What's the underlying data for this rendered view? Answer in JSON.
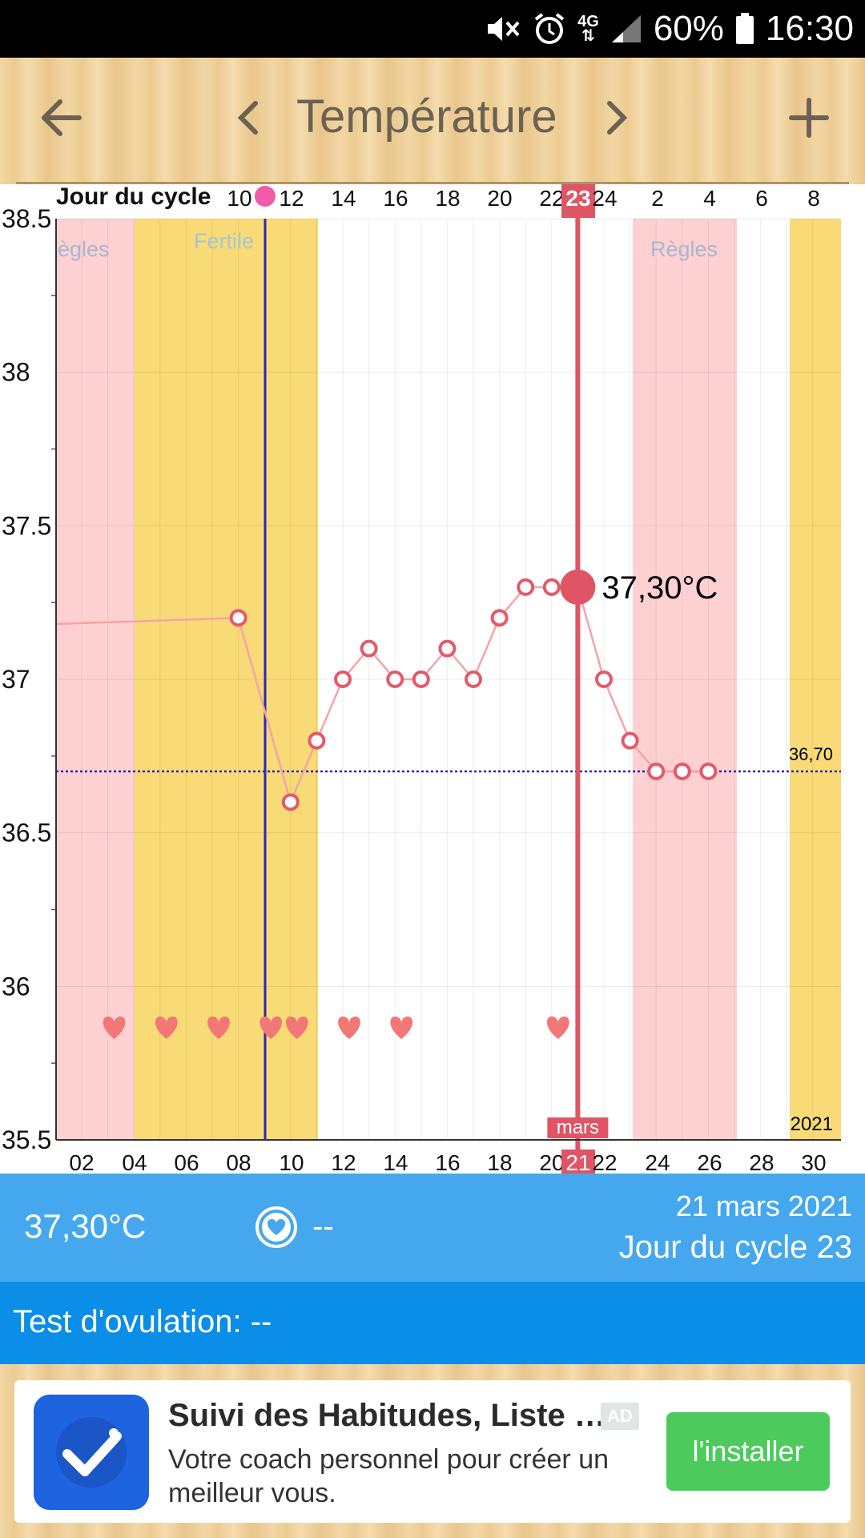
{
  "status_bar": {
    "battery": "60%",
    "time": "16:30",
    "network": "4G"
  },
  "header": {
    "title": "Température",
    "back_icon": "arrow-left-icon",
    "prev_icon": "chevron-left-icon",
    "next_icon": "chevron-right-icon",
    "add_icon": "plus-icon"
  },
  "chart_data": {
    "type": "line",
    "top_axis_label": "Jour du cycle",
    "top_ticks": [
      "10",
      "12",
      "14",
      "16",
      "18",
      "20",
      "22",
      "23",
      "24",
      "2",
      "4",
      "6",
      "8"
    ],
    "bottom_ticks": [
      "02",
      "04",
      "06",
      "08",
      "10",
      "12",
      "14",
      "16",
      "18",
      "20",
      "21",
      "22",
      "24",
      "26",
      "28",
      "30"
    ],
    "month_label": "mars",
    "year_label": "2021",
    "y_ticks": [
      "38.5",
      "38",
      "37.5",
      "37",
      "36.5",
      "36",
      "35.5"
    ],
    "ylim": [
      35.5,
      38.5
    ],
    "coverline_value": 36.7,
    "coverline_label": "36,70",
    "selected_label": "37,30°C",
    "selected_day": 21,
    "band_labels": {
      "regles_left": "ègles",
      "fertile": "Fertile",
      "regles_right": "Règles"
    },
    "series": [
      {
        "x": [
          8,
          10,
          11,
          12,
          13,
          14,
          15,
          16,
          17,
          18,
          19,
          20,
          21,
          22,
          23,
          24,
          25,
          26
        ],
        "y": [
          37.2,
          36.6,
          36.8,
          37.0,
          37.1,
          37.0,
          37.0,
          37.1,
          37.0,
          37.2,
          37.3,
          37.3,
          37.3,
          37.0,
          36.8,
          36.7,
          36.7,
          36.7
        ]
      }
    ],
    "hearts_days": [
      3,
      5,
      7,
      9,
      10,
      12,
      14,
      20
    ],
    "colors": {
      "regles": "#fdd1d1",
      "fertile": "#f8da76",
      "line": "#f5a3a8",
      "marker": "#e35a6a",
      "selected": "#df5565",
      "ovulation": "#2b27b8"
    }
  },
  "info": {
    "temperature": "37,30°C",
    "heart_value": "--",
    "date": "21 mars 2021",
    "cycle_day": "Jour du cycle 23"
  },
  "ovulation": {
    "label": "Test d'ovulation: --"
  },
  "ad": {
    "title": "Suivi des Habitudes, Liste …",
    "description": "Votre coach personnel pour créer un meilleur vous.",
    "badge": "AD",
    "button": "l'installer",
    "icon": "checkmark-icon"
  }
}
